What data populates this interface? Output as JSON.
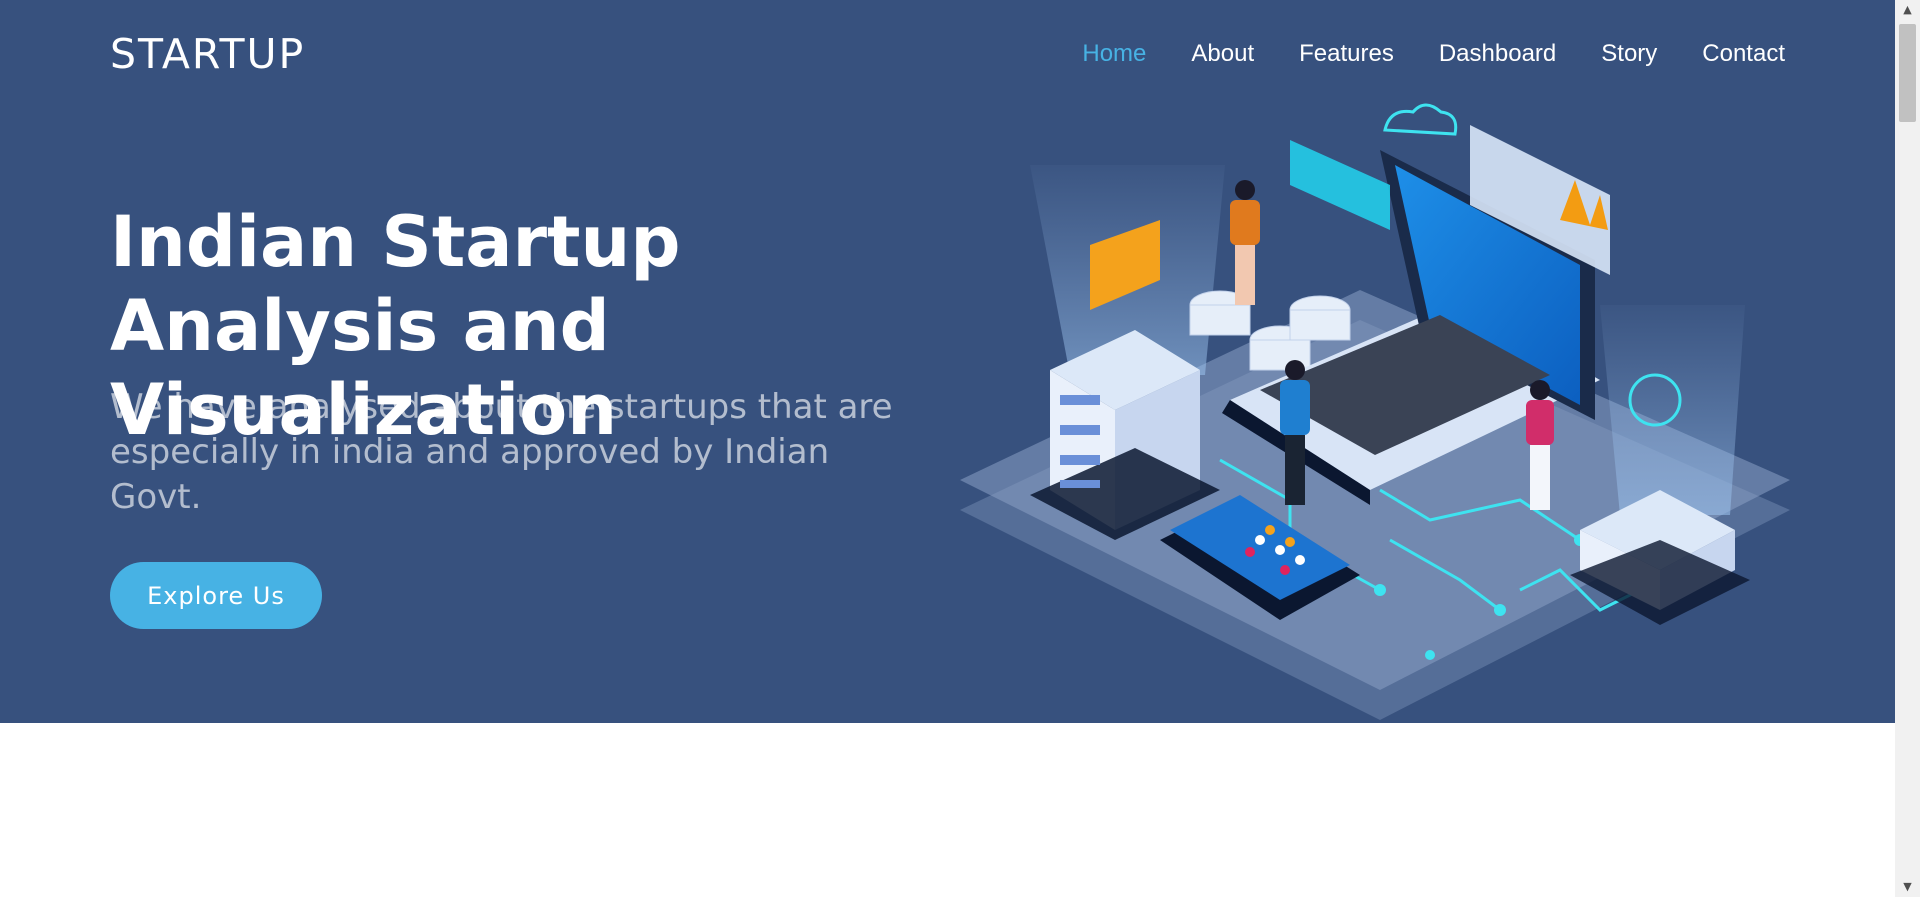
{
  "header": {
    "brand": "STARTUP",
    "nav": [
      {
        "label": "Home",
        "active": true
      },
      {
        "label": "About"
      },
      {
        "label": "Features"
      },
      {
        "label": "Dashboard"
      },
      {
        "label": "Story"
      },
      {
        "label": "Contact"
      }
    ]
  },
  "hero": {
    "title": "Indian Startup Analysis and Visualization",
    "subtitle": "We have analysed about the startups that are especially in india and approved by Indian Govt.",
    "cta_label": "Explore Us"
  },
  "colors": {
    "hero_bg": "#37517e",
    "accent": "#47b2e4",
    "text_light": "#ffffff"
  },
  "icons": {
    "scroll_up": "chevron-up-icon",
    "scroll_down": "chevron-down-icon"
  }
}
